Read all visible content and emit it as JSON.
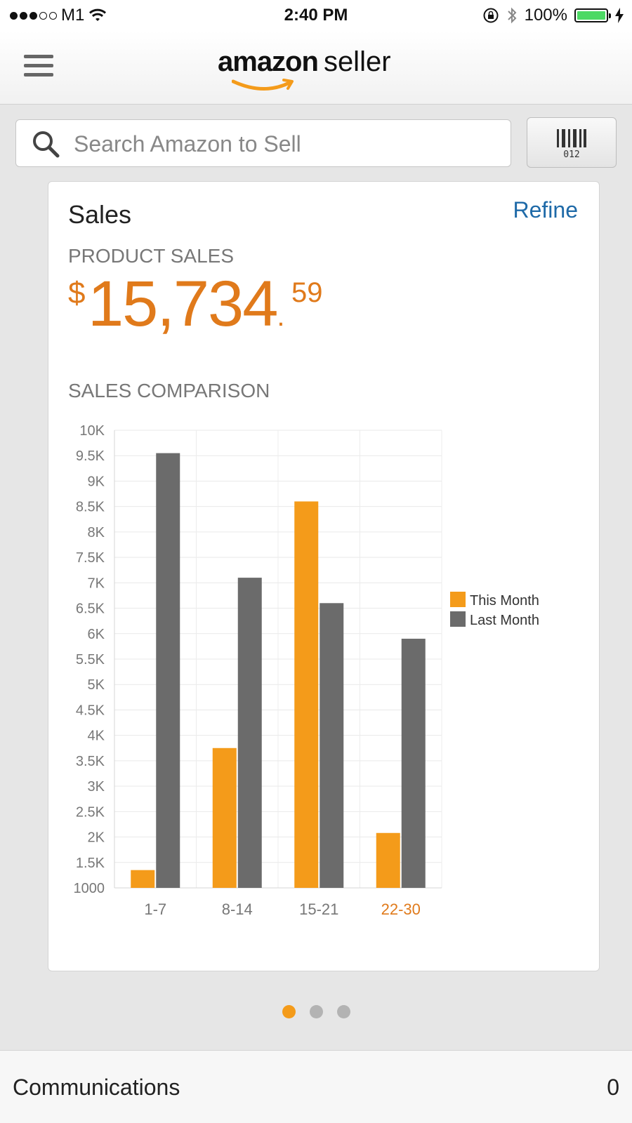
{
  "status_bar": {
    "carrier": "M1",
    "time": "2:40 PM",
    "battery": "100%",
    "battery_level": 1.0,
    "signal_bars_filled": 3,
    "signal_bars_total": 5
  },
  "header": {
    "brand_amazon": "amazon",
    "brand_seller": "seller"
  },
  "search": {
    "placeholder": "Search Amazon to Sell"
  },
  "barcode_button": {
    "digits": "012"
  },
  "sales_card": {
    "title": "Sales",
    "refine_label": "Refine",
    "product_sales_label": "PRODUCT SALES",
    "amount_currency": "$",
    "amount_whole": "15,734",
    "amount_decimal": ".",
    "amount_cents": "59",
    "comparison_label": "SALES COMPARISON"
  },
  "chart_data": {
    "type": "bar",
    "categories": [
      "1-7",
      "8-14",
      "15-21",
      "22-30"
    ],
    "highlighted_category": "22-30",
    "series": [
      {
        "name": "This Month",
        "values": [
          1350,
          3750,
          8600,
          2080
        ],
        "color": "#f49b1a"
      },
      {
        "name": "Last Month",
        "values": [
          9550,
          7100,
          6600,
          5900
        ],
        "color": "#6b6b6b"
      }
    ],
    "y_ticks": [
      "1000",
      "1.5K",
      "2K",
      "2.5K",
      "3K",
      "3.5K",
      "4K",
      "4.5K",
      "5K",
      "5.5K",
      "6K",
      "6.5K",
      "7K",
      "7.5K",
      "8K",
      "8.5K",
      "9K",
      "9.5K",
      "10K"
    ],
    "ylim": [
      1000,
      10000
    ],
    "grid": true,
    "legend": "right",
    "highlight_color": "#e07a1b"
  },
  "pager": {
    "count": 3,
    "active": 0
  },
  "communications": {
    "label": "Communications",
    "count": "0"
  }
}
